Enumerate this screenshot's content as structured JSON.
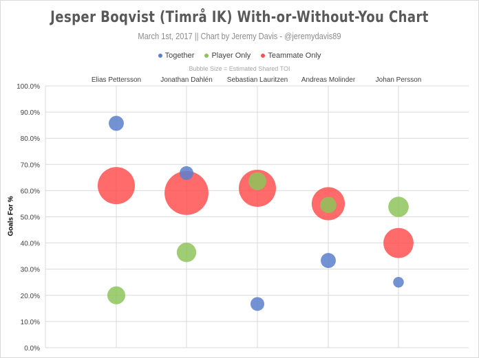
{
  "chart_data": {
    "type": "bubble",
    "title": "Jesper Boqvist (Timrå IK) With-or-Without-You Chart",
    "subtitle": "March 1st, 2017 || Chart by Jeremy Davis - @jeremydavis89",
    "size_note": "Bubble Size = Estimated Shared TOI",
    "ylabel": "Goals For %",
    "xlabel": "",
    "ylim": [
      0,
      100
    ],
    "yticks": [
      "0.0%",
      "10.0%",
      "20.0%",
      "30.0%",
      "40.0%",
      "50.0%",
      "60.0%",
      "70.0%",
      "80.0%",
      "90.0%",
      "100.0%"
    ],
    "categories": [
      "Elias Pettersson",
      "Jonathan Dahlén",
      "Sebastian Lauritzen",
      "Andreas Molinder",
      "Johan Persson"
    ],
    "grid": true,
    "legend_position": "top",
    "series": [
      {
        "name": "Teammate Only",
        "color": "#ff5050",
        "values": [
          61.9,
          59.1,
          60.9,
          55.0,
          40.0
        ],
        "sizes": [
          73,
          102,
          73,
          58,
          48
        ]
      },
      {
        "name": "Player Only",
        "color": "#8dc45a",
        "values": [
          20.0,
          36.4,
          63.6,
          54.5,
          53.8
        ],
        "sizes": [
          17,
          20,
          17,
          14,
          22
        ]
      },
      {
        "name": "Together",
        "color": "#5a7fcc",
        "values": [
          85.7,
          66.7,
          16.7,
          33.3,
          25.0
        ],
        "sizes": [
          12,
          10,
          10,
          12,
          6
        ]
      }
    ],
    "legend_order": [
      "Together",
      "Player Only",
      "Teammate Only"
    ]
  }
}
